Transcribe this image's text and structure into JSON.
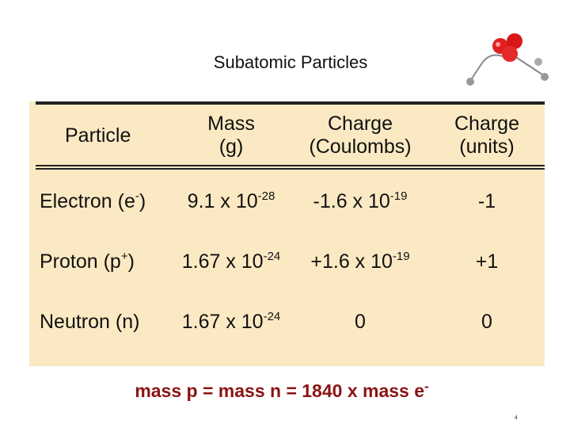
{
  "title": "Subatomic Particles",
  "table": {
    "header": [
      [
        "Particle"
      ],
      [
        "Mass",
        "(g)"
      ],
      [
        "Charge",
        "(Coulombs)"
      ],
      [
        "Charge",
        "(units)"
      ]
    ],
    "rows": [
      [
        {
          "base": "Electron (e",
          "sup": "-",
          "tail": ")"
        },
        {
          "base": "9.1 x 10",
          "sup": "-28"
        },
        {
          "base": "-1.6 x 10",
          "sup": "-19"
        },
        "-1"
      ],
      [
        {
          "base": "Proton (p",
          "sup": "+",
          "tail": ")"
        },
        {
          "base": "1.67 x 10",
          "sup": "-24"
        },
        {
          "base": "+1.6 x 10",
          "sup": "-19"
        },
        "+1"
      ],
      [
        "Neutron (n)",
        {
          "base": "1.67 x 10",
          "sup": "-24"
        },
        "0",
        "0"
      ]
    ]
  },
  "footer": {
    "base": "mass p = mass n = 1840 x mass e",
    "sup": "-"
  },
  "page_number": "4"
}
